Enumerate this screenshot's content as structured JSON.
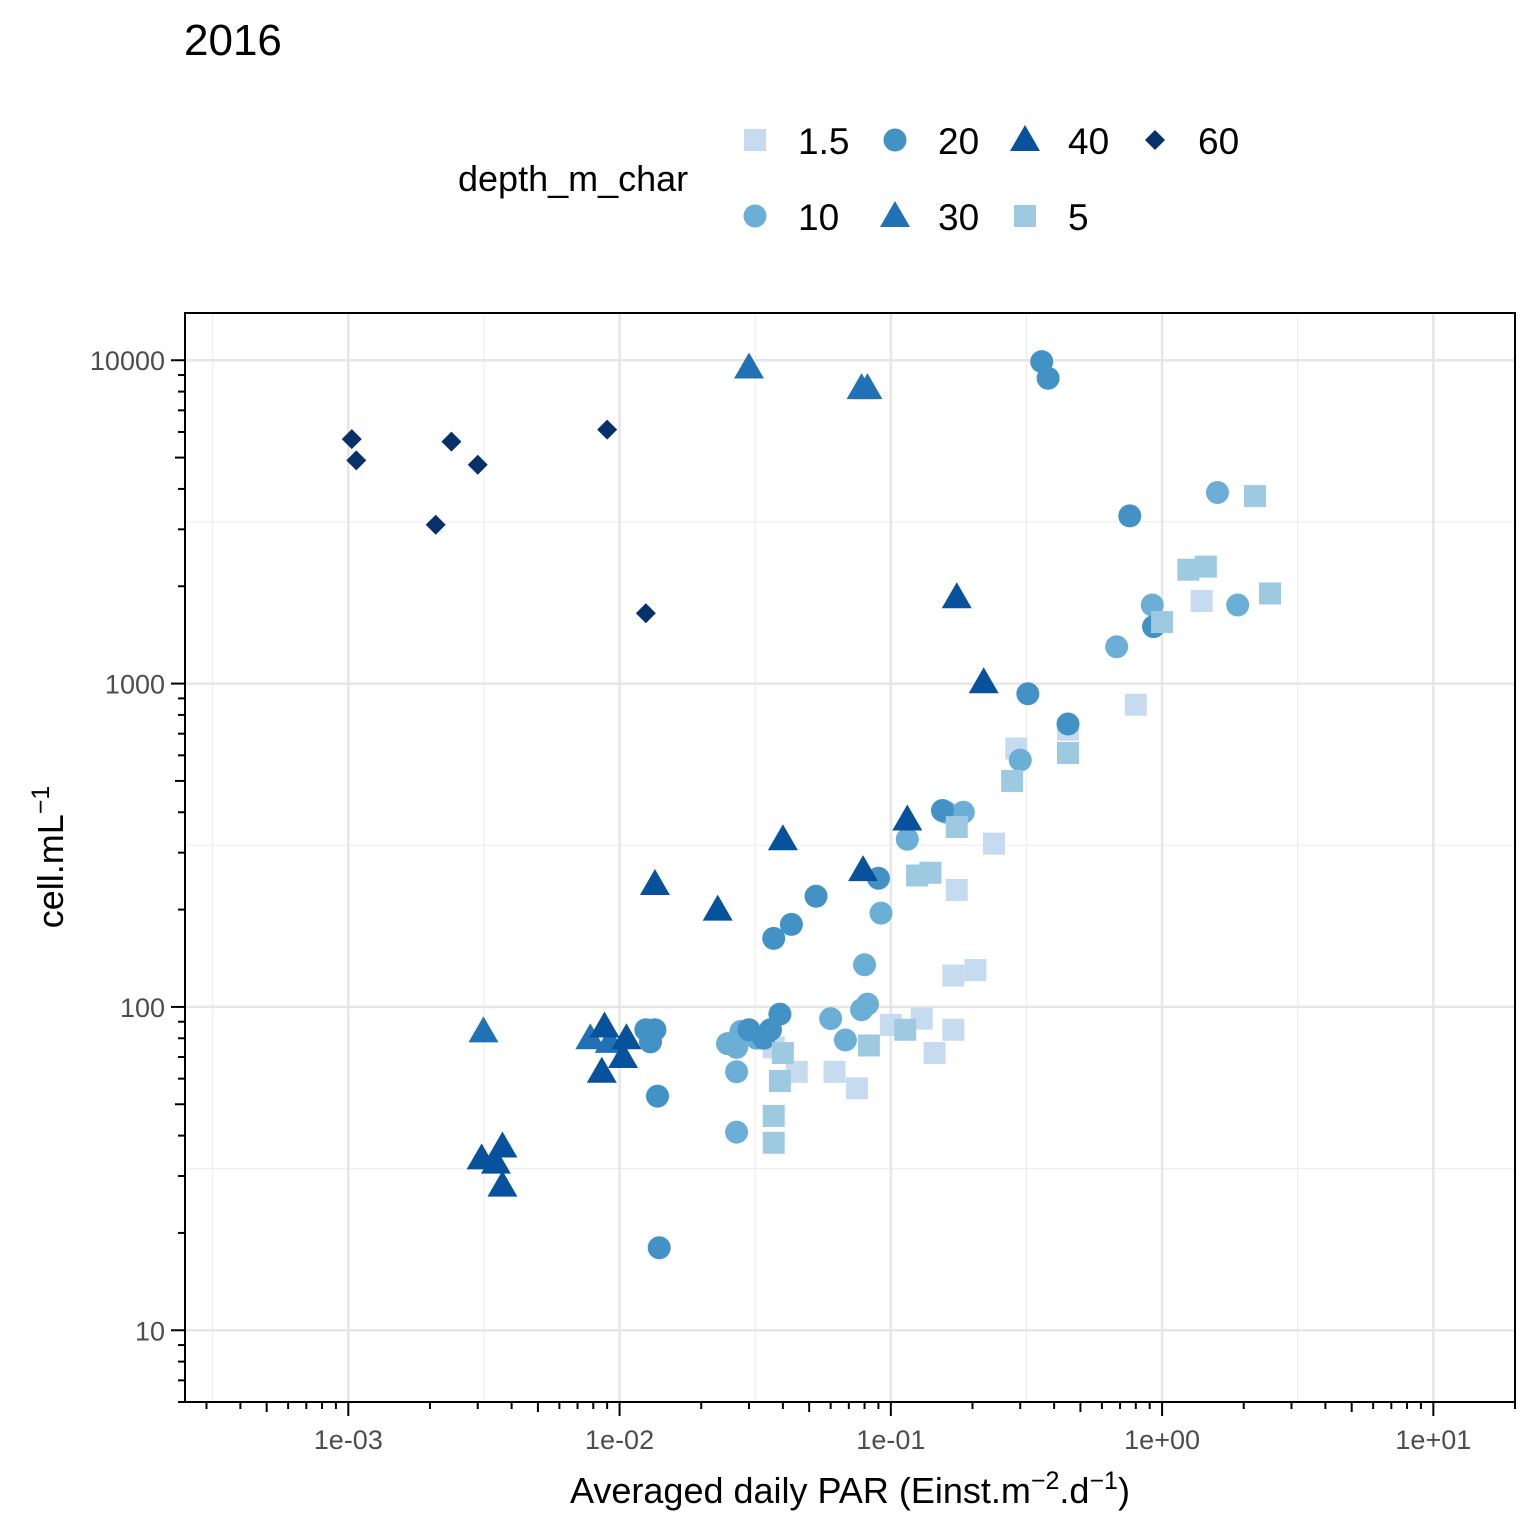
{
  "chart_data": {
    "type": "scatter",
    "title": "2016",
    "xlabel": {
      "prefix": "Averaged daily PAR (Einst.m",
      "sup1": "−2",
      "mid": ".d",
      "sup2": "−1",
      "suffix": ")"
    },
    "ylabel": {
      "prefix": "cell.mL",
      "sup": "−1"
    },
    "x_scale": "log10",
    "y_scale": "log10",
    "xlim": [
      0.00025,
      20
    ],
    "ylim": [
      6,
      14000
    ],
    "x_ticks": [
      {
        "value": 0.001,
        "label": "1e-03"
      },
      {
        "value": 0.01,
        "label": "1e-02"
      },
      {
        "value": 0.1,
        "label": "1e-01"
      },
      {
        "value": 1,
        "label": "1e+00"
      },
      {
        "value": 10,
        "label": "1e+01"
      }
    ],
    "y_ticks": [
      {
        "value": 10,
        "label": "10"
      },
      {
        "value": 100,
        "label": "100"
      },
      {
        "value": 1000,
        "label": "1000"
      },
      {
        "value": 10000,
        "label": "10000"
      }
    ],
    "grid": true,
    "legend": {
      "title": "depth_m_char",
      "position": "top"
    },
    "series": [
      {
        "name": "1.5",
        "shape": "square",
        "color": "#c6dbef",
        "points": [
          [
            0.29,
            630
          ],
          [
            0.45,
            720
          ],
          [
            0.8,
            860
          ],
          [
            1.4,
            1800
          ],
          [
            0.24,
            320
          ],
          [
            0.175,
            230
          ],
          [
            0.17,
            125
          ],
          [
            0.205,
            130
          ],
          [
            0.17,
            85
          ],
          [
            0.145,
            72
          ],
          [
            0.13,
            92
          ],
          [
            0.1,
            88
          ],
          [
            0.075,
            56
          ],
          [
            0.062,
            63
          ],
          [
            0.045,
            63
          ],
          [
            0.037,
            75
          ]
        ]
      },
      {
        "name": "10",
        "shape": "circle",
        "color": "#6baed6",
        "points": [
          [
            1.6,
            3900
          ],
          [
            1.9,
            1750
          ],
          [
            0.92,
            1750
          ],
          [
            0.68,
            1300
          ],
          [
            0.3,
            580
          ],
          [
            0.185,
            400
          ],
          [
            0.16,
            400
          ],
          [
            0.115,
            330
          ],
          [
            0.092,
            195
          ],
          [
            0.08,
            135
          ],
          [
            0.082,
            102
          ],
          [
            0.078,
            98
          ],
          [
            0.068,
            79
          ],
          [
            0.06,
            92
          ],
          [
            0.032,
            80
          ],
          [
            0.03,
            82
          ],
          [
            0.028,
            84
          ],
          [
            0.027,
            75
          ],
          [
            0.025,
            77
          ],
          [
            0.027,
            63
          ],
          [
            0.027,
            41
          ]
        ]
      },
      {
        "name": "20",
        "shape": "circle",
        "color": "#4292c6",
        "points": [
          [
            0.36,
            9900
          ],
          [
            0.38,
            8800
          ],
          [
            0.76,
            3300
          ],
          [
            0.93,
            1500
          ],
          [
            0.32,
            930
          ],
          [
            0.45,
            750
          ],
          [
            0.155,
            405
          ],
          [
            0.09,
            250
          ],
          [
            0.053,
            220
          ],
          [
            0.043,
            180
          ],
          [
            0.037,
            163
          ],
          [
            0.039,
            95
          ],
          [
            0.036,
            85
          ],
          [
            0.034,
            80
          ],
          [
            0.03,
            85
          ],
          [
            0.0125,
            85
          ],
          [
            0.0135,
            85
          ],
          [
            0.013,
            78
          ],
          [
            0.0138,
            53
          ],
          [
            0.014,
            18
          ]
        ]
      },
      {
        "name": "30",
        "shape": "triangle",
        "color": "#2171b5",
        "points": [
          [
            0.03,
            9500
          ],
          [
            0.078,
            8200
          ],
          [
            0.082,
            8200
          ],
          [
            0.00315,
            84
          ],
          [
            0.0078,
            80
          ],
          [
            0.0092,
            78
          ]
        ]
      },
      {
        "name": "40",
        "shape": "triangle",
        "color": "#08519c",
        "points": [
          [
            0.175,
            1850
          ],
          [
            0.22,
            1010
          ],
          [
            0.115,
            380
          ],
          [
            0.04,
            330
          ],
          [
            0.079,
            265
          ],
          [
            0.0135,
            240
          ],
          [
            0.023,
            200
          ],
          [
            0.0088,
            87
          ],
          [
            0.0106,
            80
          ],
          [
            0.0103,
            70
          ],
          [
            0.0086,
            63
          ],
          [
            0.0031,
            34
          ],
          [
            0.0037,
            37
          ],
          [
            0.0035,
            33
          ],
          [
            0.0037,
            28
          ]
        ]
      },
      {
        "name": "5",
        "shape": "square",
        "color": "#9ecae1",
        "points": [
          [
            2.2,
            3800
          ],
          [
            2.5,
            1900
          ],
          [
            1.25,
            2250
          ],
          [
            1.45,
            2300
          ],
          [
            1.0,
            1550
          ],
          [
            0.45,
            610
          ],
          [
            0.28,
            500
          ],
          [
            0.175,
            360
          ],
          [
            0.14,
            260
          ],
          [
            0.125,
            255
          ],
          [
            0.113,
            85
          ],
          [
            0.083,
            76
          ],
          [
            0.04,
            72
          ],
          [
            0.039,
            59
          ],
          [
            0.037,
            46
          ],
          [
            0.037,
            38
          ]
        ]
      },
      {
        "name": "60",
        "shape": "diamond",
        "color": "#08306b",
        "points": [
          [
            0.00103,
            5700
          ],
          [
            0.00107,
            4900
          ],
          [
            0.0024,
            5600
          ],
          [
            0.003,
            4750
          ],
          [
            0.0021,
            3100
          ],
          [
            0.009,
            6100
          ],
          [
            0.0125,
            1650
          ]
        ]
      }
    ]
  }
}
